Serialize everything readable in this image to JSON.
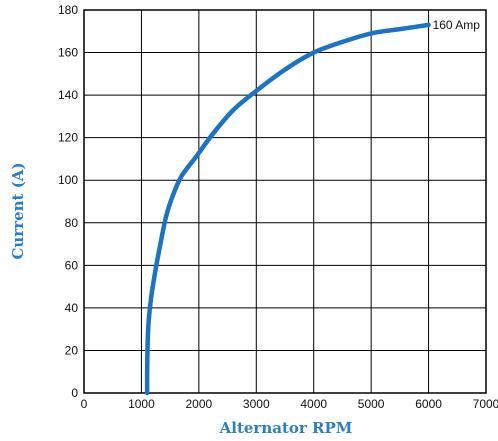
{
  "chart_data": {
    "type": "line",
    "title": "",
    "xlabel": "Alternator RPM",
    "ylabel": "Current (A)",
    "xlim": [
      0,
      7000
    ],
    "ylim": [
      0,
      180
    ],
    "x_ticks": [
      "0",
      "1000",
      "2000",
      "3000",
      "4000",
      "5000",
      "6000",
      "7000"
    ],
    "y_ticks": [
      "0",
      "20",
      "40",
      "60",
      "80",
      "100",
      "120",
      "140",
      "160",
      "180"
    ],
    "grid": true,
    "series": [
      {
        "x": [
          1100,
          1100,
          1110,
          1130,
          1170,
          1240,
          1330,
          1430,
          1550,
          1700,
          1950,
          2250,
          2600,
          3000,
          3500,
          4000,
          4500,
          5000,
          5500,
          6000
        ],
        "y": [
          0,
          10,
          25,
          35,
          45,
          57,
          70,
          83,
          93,
          102,
          111,
          122,
          133,
          142,
          152,
          160,
          165,
          169,
          171,
          173
        ]
      }
    ],
    "annotations": [
      {
        "text": "160 Amp",
        "x": 6000,
        "y": 173
      }
    ],
    "colors": {
      "line": "#1a73c4",
      "axis_title": "#2a7fc4",
      "grid": "#000000"
    }
  }
}
